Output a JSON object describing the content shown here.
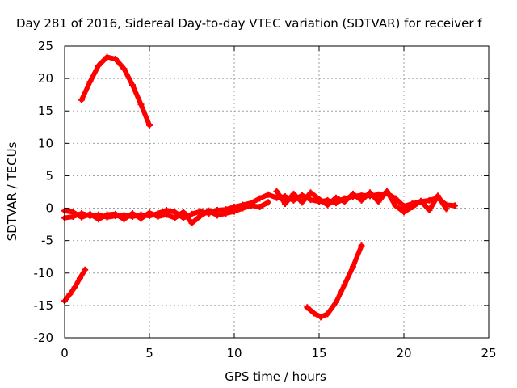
{
  "chart_data": {
    "type": "scatter",
    "title": "Day 281 of 2016, Sidereal Day-to-day VTEC variation (SDTVAR) for receiver f",
    "xlabel": "GPS time / hours",
    "ylabel": "SDTVAR / TECUs",
    "xlim": [
      0,
      25
    ],
    "ylim": [
      -20,
      25
    ],
    "xticks": [
      0,
      5,
      10,
      15,
      20,
      25
    ],
    "yticks": [
      -20,
      -15,
      -10,
      -5,
      0,
      5,
      10,
      15,
      20,
      25
    ],
    "xtick_labels": [
      "0",
      "5",
      "10",
      "15",
      "20",
      "25"
    ],
    "ytick_labels": [
      "-20",
      "-15",
      "-10",
      "-5",
      "0",
      "5",
      "10",
      "15",
      "20",
      "25"
    ],
    "grid": true,
    "marker_color": "#ff0000",
    "series": [
      {
        "x": [
          1.0,
          1.5,
          2.0,
          2.5,
          3.0,
          3.5,
          4.0,
          4.5,
          5.0
        ],
        "y": [
          16.7,
          19.5,
          22.0,
          23.3,
          23.0,
          21.5,
          19.0,
          16.0,
          12.8
        ]
      },
      {
        "x": [
          0.0,
          0.3,
          0.6,
          0.9,
          1.2
        ],
        "y": [
          -14.3,
          -13.3,
          -12.2,
          -10.8,
          -9.5
        ]
      },
      {
        "x": [
          14.3,
          14.7,
          15.1,
          15.5,
          16.0,
          16.5,
          17.0,
          17.5
        ],
        "y": [
          -15.3,
          -16.2,
          -16.8,
          -16.3,
          -14.5,
          -11.8,
          -9.0,
          -5.8
        ]
      },
      {
        "x": [
          0.0,
          0.5,
          1.0,
          1.5,
          2.0,
          2.5,
          3.0,
          3.5,
          4.0,
          4.5,
          5.0,
          5.5,
          6.0,
          6.5,
          7.0,
          7.5,
          8.0,
          8.5,
          9.0,
          9.5,
          10.0,
          10.5,
          11.0,
          11.5,
          12.0,
          12.5,
          13.0,
          13.5,
          14.0,
          14.5,
          15.0,
          15.5,
          16.0,
          16.5,
          17.0,
          17.5,
          18.0,
          18.5,
          19.0,
          19.5,
          20.0,
          20.5,
          21.0,
          21.5,
          22.0,
          22.5,
          23.0
        ],
        "y": [
          -1.5,
          -1.3,
          -0.8,
          -1.2,
          -1.0,
          -1.4,
          -1.2,
          -1.1,
          -1.3,
          -1.0,
          -1.2,
          -0.8,
          -0.3,
          -0.6,
          -1.5,
          -0.9,
          -0.5,
          -0.8,
          -0.3,
          -0.2,
          0.2,
          0.5,
          0.8,
          1.5,
          2.1,
          1.6,
          1.8,
          1.2,
          2.0,
          1.3,
          1.0,
          1.2,
          0.8,
          1.5,
          1.8,
          2.0,
          1.9,
          2.1,
          2.3,
          1.5,
          0.3,
          0.7,
          1.0,
          1.2,
          1.6,
          0.5,
          0.4
        ]
      },
      {
        "x": [
          0.0,
          0.5,
          1.0,
          1.5,
          2.0,
          2.5,
          3.0,
          3.5,
          4.0,
          4.5,
          5.0,
          5.5,
          6.0,
          6.5,
          7.0,
          7.5,
          8.0,
          8.5,
          9.0,
          9.5,
          10.0,
          10.5,
          11.0,
          11.5,
          12.0
        ],
        "y": [
          -0.4,
          -0.6,
          -1.4,
          -0.9,
          -1.7,
          -1.0,
          -0.9,
          -1.7,
          -0.8,
          -1.6,
          -0.7,
          -1.3,
          -1.0,
          -1.5,
          -0.6,
          -2.3,
          -1.2,
          -0.4,
          -1.1,
          -0.8,
          -0.5,
          0.0,
          0.4,
          0.2,
          0.9
        ]
      },
      {
        "x": [
          12.5,
          13.0,
          13.5,
          14.0,
          14.5,
          15.0,
          15.5,
          16.0,
          16.5,
          17.0,
          17.5,
          18.0,
          18.5,
          19.0,
          19.5,
          20.0,
          20.5,
          21.0,
          21.5,
          22.0,
          22.5
        ],
        "y": [
          2.6,
          0.7,
          2.2,
          0.9,
          2.4,
          1.4,
          0.5,
          1.6,
          1.0,
          2.2,
          1.2,
          2.4,
          1.0,
          2.6,
          0.4,
          -0.6,
          0.2,
          1.1,
          -0.3,
          1.9,
          -0.1
        ]
      }
    ]
  }
}
